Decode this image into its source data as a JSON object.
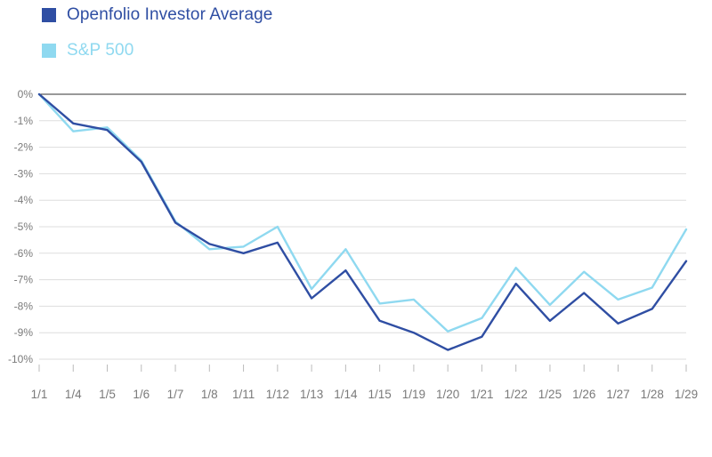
{
  "chart_data": {
    "type": "line",
    "title": "",
    "xlabel": "",
    "ylabel": "",
    "categories": [
      "1/1",
      "1/4",
      "1/5",
      "1/6",
      "1/7",
      "1/8",
      "1/11",
      "1/12",
      "1/13",
      "1/14",
      "1/15",
      "1/19",
      "1/20",
      "1/21",
      "1/22",
      "1/25",
      "1/26",
      "1/27",
      "1/28",
      "1/29"
    ],
    "ylim": [
      -10,
      0
    ],
    "yticks": [
      0,
      -1,
      -2,
      -3,
      -4,
      -5,
      -6,
      -7,
      -8,
      -9,
      -10
    ],
    "ytick_labels": [
      "0%",
      "-1%",
      "-2%",
      "-3%",
      "-4%",
      "-5%",
      "-6%",
      "-7%",
      "-8%",
      "-9%",
      "-10%"
    ],
    "grid": true,
    "legend_position": "top-left",
    "series": [
      {
        "name": "Openfolio Investor Average",
        "color": "#2f4ea3",
        "values": [
          0.0,
          -1.1,
          -1.35,
          -2.55,
          -4.85,
          -5.65,
          -6.0,
          -5.6,
          -7.7,
          -6.65,
          -8.55,
          -9.0,
          -9.65,
          -9.15,
          -7.15,
          -8.55,
          -7.5,
          -8.65,
          -8.1,
          -6.3
        ]
      },
      {
        "name": "S&P 500",
        "color": "#8fd9f0",
        "values": [
          0.0,
          -1.4,
          -1.25,
          -2.5,
          -4.8,
          -5.85,
          -5.75,
          -5.0,
          -7.35,
          -5.85,
          -7.9,
          -7.75,
          -8.95,
          -8.45,
          -6.55,
          -7.95,
          -6.7,
          -7.75,
          -7.3,
          -5.1
        ]
      }
    ],
    "colors": {
      "axis_text": "#7a7a7a",
      "grid": "#dddddd",
      "zero_line": "#333333"
    }
  }
}
